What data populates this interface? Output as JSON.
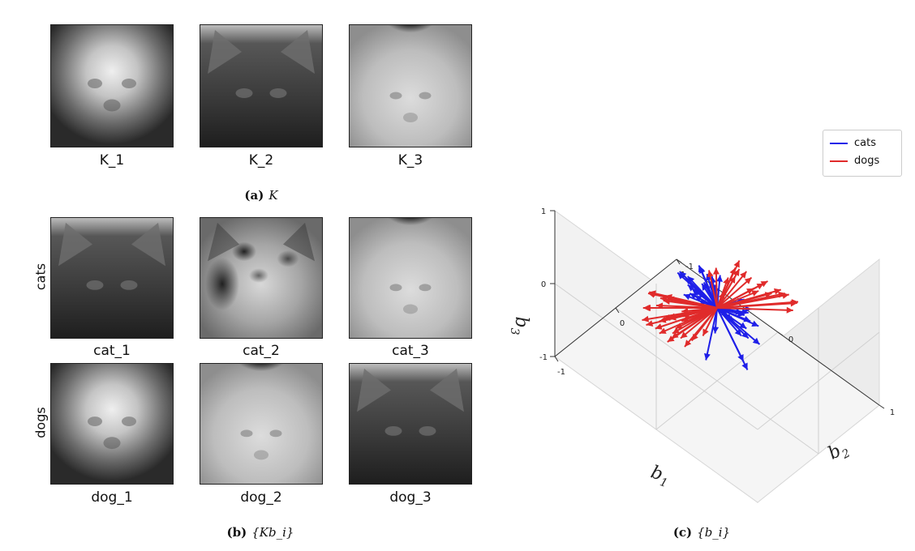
{
  "panel_a": {
    "images": [
      {
        "label": "K_1",
        "tone": "dog-light"
      },
      {
        "label": "K_2",
        "tone": "cat-dark"
      },
      {
        "label": "K_3",
        "tone": "light-dark-top"
      }
    ],
    "caption": {
      "letter": "(a)",
      "symbol": "K"
    }
  },
  "panel_b": {
    "row_labels": [
      "cats",
      "dogs"
    ],
    "images": [
      {
        "label": "cat_1",
        "tone": "cat-dark"
      },
      {
        "label": "cat_2",
        "tone": "cat-mottled"
      },
      {
        "label": "cat_3",
        "tone": "light-dark-top"
      },
      {
        "label": "dog_1",
        "tone": "dog-light"
      },
      {
        "label": "dog_2",
        "tone": "light-dark-top"
      },
      {
        "label": "dog_3",
        "tone": "cat-dark"
      }
    ],
    "caption": {
      "letter": "(b)",
      "symbol": "{Kb_i}"
    }
  },
  "panel_c": {
    "caption": {
      "letter": "(c)",
      "symbol": "{b_i}"
    },
    "chart_data": {
      "type": "3d-quiver",
      "axes": {
        "x_label": "b_1",
        "y_label": "b_2",
        "z_label": "b_3",
        "xlim": [
          -1,
          1
        ],
        "ylim": [
          -1,
          1
        ],
        "zlim": [
          -1,
          1
        ],
        "x_ticks": [
          "-1",
          "0",
          "1"
        ],
        "y_ticks": [
          "-1",
          "0",
          "1"
        ],
        "z_ticks": [
          "-1",
          "0",
          "1"
        ]
      },
      "legend": [
        {
          "name": "cats",
          "color": "#1f1fe8"
        },
        {
          "name": "dogs",
          "color": "#e02b2b"
        }
      ],
      "legend_position": "top-right",
      "series": [
        {
          "name": "cats",
          "color": "#1f1fe8",
          "count": 40,
          "vectors": [
            [
              -0.3,
              -0.45,
              0.55
            ],
            [
              -0.35,
              -0.5,
              0.45
            ],
            [
              -0.4,
              -0.55,
              0.4
            ],
            [
              -0.25,
              -0.4,
              0.5
            ],
            [
              -0.3,
              -0.35,
              0.35
            ],
            [
              -0.2,
              -0.45,
              0.4
            ],
            [
              -0.3,
              -0.6,
              0.3
            ],
            [
              -0.1,
              -0.4,
              0.45
            ],
            [
              -0.25,
              -0.3,
              0.3
            ],
            [
              -0.15,
              -0.5,
              0.35
            ],
            [
              -0.35,
              -0.45,
              0.3
            ],
            [
              -0.05,
              -0.3,
              0.45
            ],
            [
              -0.2,
              -0.2,
              0.35
            ],
            [
              -0.4,
              -0.35,
              0.5
            ],
            [
              -0.45,
              -0.25,
              0.2
            ],
            [
              0.35,
              0.5,
              -0.3
            ],
            [
              0.45,
              0.4,
              -0.35
            ],
            [
              0.4,
              0.55,
              -0.4
            ],
            [
              0.5,
              0.35,
              -0.25
            ],
            [
              0.3,
              0.45,
              -0.45
            ],
            [
              0.55,
              0.5,
              -0.3
            ],
            [
              0.45,
              0.3,
              -0.5
            ],
            [
              0.35,
              0.6,
              -0.35
            ],
            [
              0.25,
              0.4,
              -0.3
            ],
            [
              0.5,
              0.45,
              -0.45
            ],
            [
              0.4,
              0.3,
              -0.2
            ],
            [
              0.3,
              0.55,
              -0.25
            ],
            [
              0.45,
              0.5,
              -0.55
            ],
            [
              0.2,
              0.45,
              -0.4
            ],
            [
              0.55,
              0.35,
              -0.4
            ],
            [
              -0.3,
              0.0,
              0.3
            ],
            [
              0.2,
              0.3,
              0.15
            ],
            [
              0.1,
              -0.2,
              -0.6
            ],
            [
              -0.1,
              0.05,
              -0.7
            ],
            [
              0.35,
              -0.1,
              -0.2
            ],
            [
              0.3,
              0.15,
              0.1
            ],
            [
              0.1,
              0.35,
              -0.1
            ],
            [
              0.25,
              0.25,
              0.05
            ],
            [
              0.0,
              -0.3,
              -0.55
            ],
            [
              -0.2,
              0.1,
              0.2
            ]
          ]
        },
        {
          "name": "dogs",
          "color": "#e02b2b",
          "count": 50,
          "vectors": [
            [
              0.25,
              -0.35,
              0.55
            ],
            [
              0.15,
              -0.2,
              0.6
            ],
            [
              0.3,
              -0.45,
              0.5
            ],
            [
              0.05,
              -0.15,
              0.55
            ],
            [
              0.35,
              -0.5,
              0.45
            ],
            [
              0.1,
              -0.3,
              0.5
            ],
            [
              -0.05,
              0.05,
              0.5
            ],
            [
              0.4,
              -0.55,
              0.35
            ],
            [
              0.2,
              -0.1,
              0.5
            ],
            [
              0.45,
              -0.4,
              0.3
            ],
            [
              0.25,
              -0.6,
              0.4
            ],
            [
              0.35,
              -0.25,
              0.35
            ],
            [
              0.5,
              -0.5,
              0.25
            ],
            [
              -0.35,
              0.4,
              -0.45
            ],
            [
              -0.25,
              0.3,
              -0.55
            ],
            [
              -0.4,
              0.5,
              -0.4
            ],
            [
              -0.3,
              0.35,
              -0.3
            ],
            [
              -0.45,
              0.3,
              -0.35
            ],
            [
              -0.2,
              0.45,
              -0.5
            ],
            [
              -0.35,
              0.2,
              -0.25
            ],
            [
              -0.5,
              0.4,
              -0.3
            ],
            [
              -0.3,
              0.55,
              -0.35
            ],
            [
              -0.15,
              0.35,
              -0.6
            ],
            [
              -0.4,
              0.25,
              -0.45
            ],
            [
              -0.25,
              0.45,
              -0.25
            ],
            [
              -0.1,
              0.3,
              -0.65
            ],
            [
              0.0,
              0.25,
              -0.7
            ],
            [
              -0.05,
              0.45,
              -0.55
            ],
            [
              0.1,
              0.2,
              -0.65
            ],
            [
              -0.2,
              0.2,
              -0.6
            ],
            [
              -0.4,
              0.1,
              0.05
            ],
            [
              -0.45,
              0.2,
              -0.05
            ],
            [
              -0.35,
              0.3,
              0.1
            ],
            [
              -0.5,
              0.05,
              0.1
            ],
            [
              -0.3,
              0.35,
              -0.05
            ],
            [
              -0.4,
              0.25,
              0.15
            ],
            [
              0.4,
              -0.1,
              0.25
            ],
            [
              0.45,
              0.05,
              0.3
            ],
            [
              0.35,
              -0.2,
              0.2
            ],
            [
              0.3,
              0.0,
              0.35
            ],
            [
              -0.3,
              0.5,
              -0.1
            ],
            [
              -0.2,
              0.55,
              -0.2
            ],
            [
              -0.1,
              0.5,
              -0.3
            ],
            [
              0.1,
              -0.05,
              0.4
            ],
            [
              -0.05,
              -0.1,
              0.35
            ],
            [
              0.15,
              0.1,
              0.35
            ],
            [
              0.0,
              0.35,
              -0.4
            ],
            [
              0.2,
              0.3,
              -0.5
            ],
            [
              -0.45,
              0.45,
              -0.15
            ],
            [
              0.15,
              -0.45,
              0.55
            ]
          ]
        }
      ]
    }
  }
}
